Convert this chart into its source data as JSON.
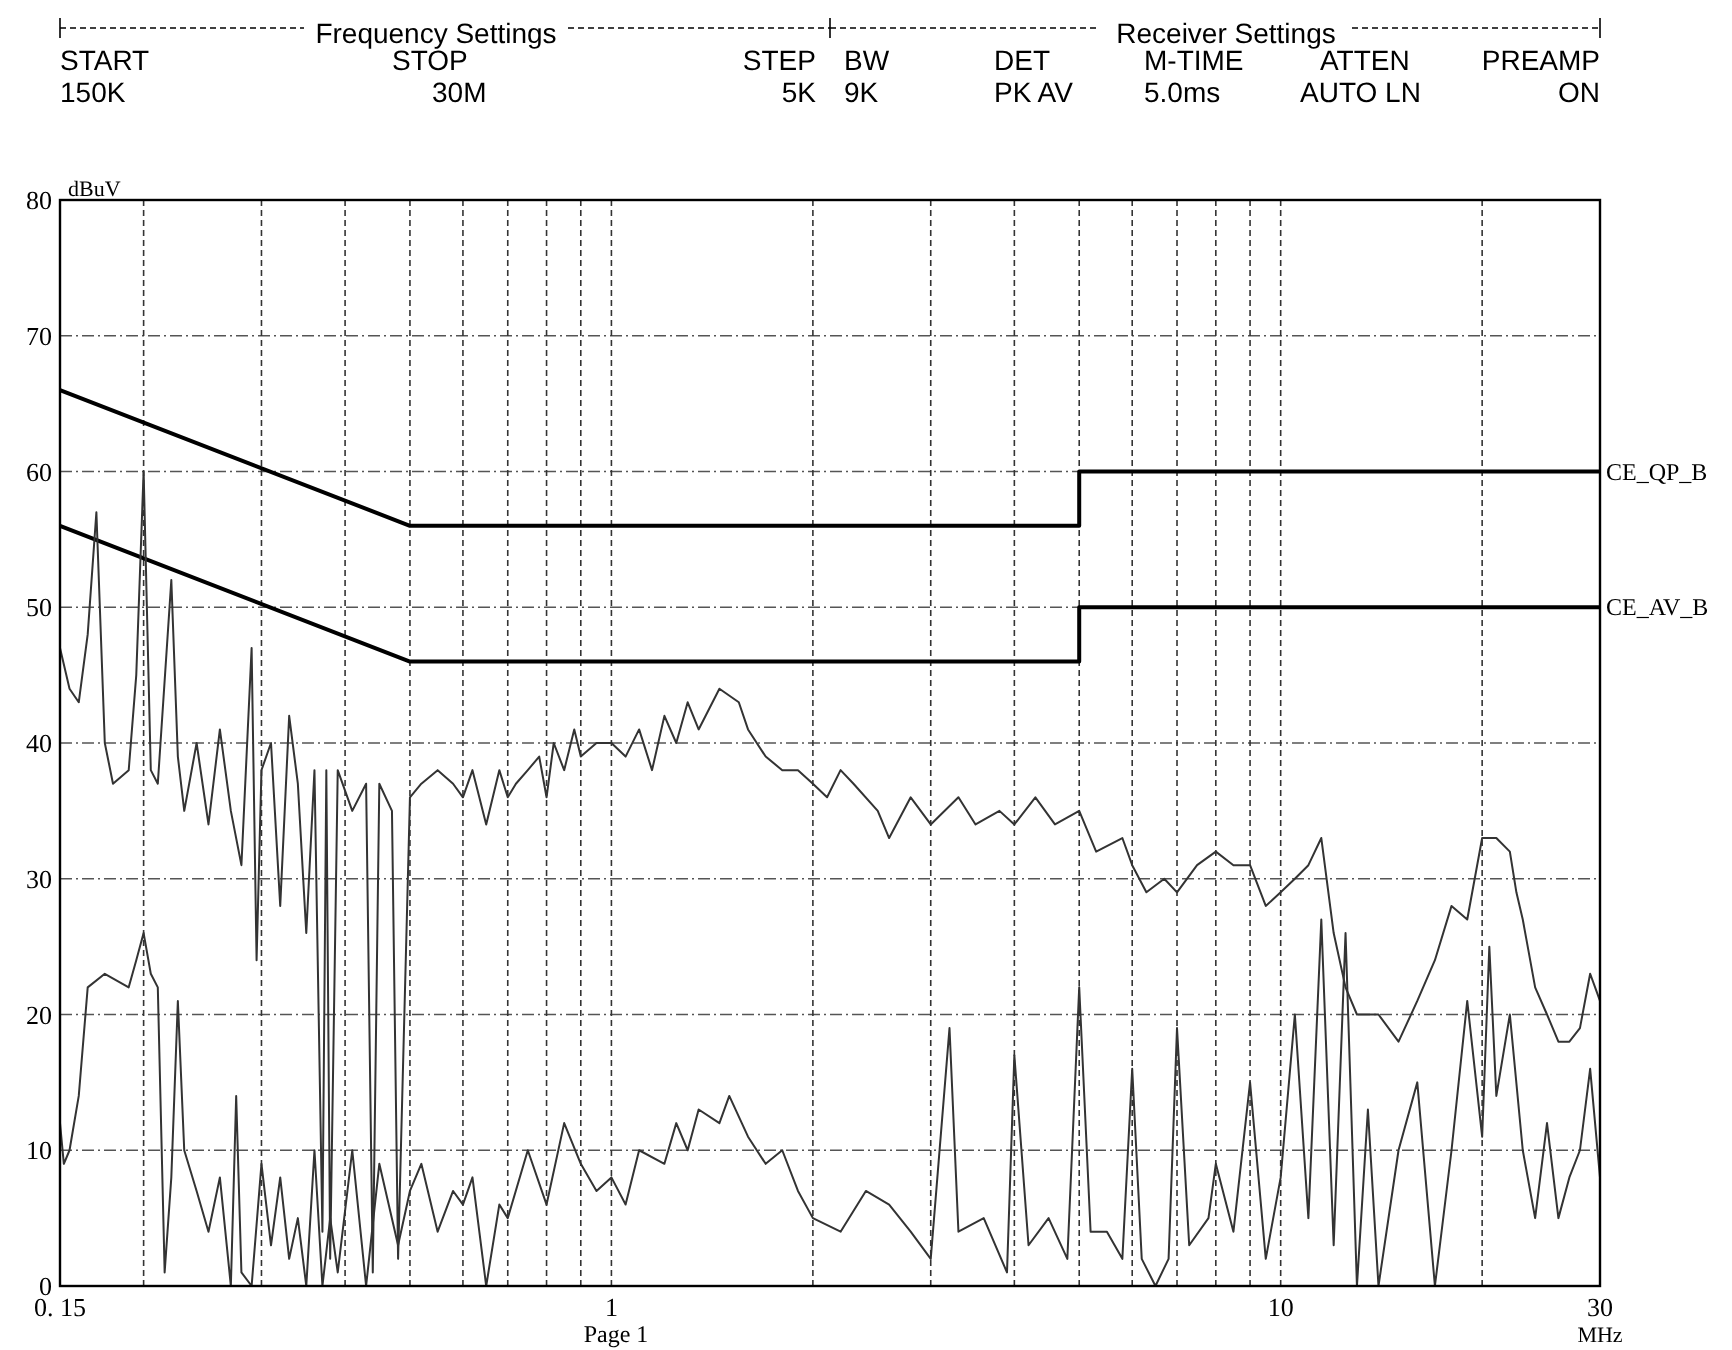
{
  "chart_data": {
    "type": "line",
    "xlabel": "MHz",
    "ylabel": "dBuV",
    "log": "x",
    "grid": true,
    "xlim": [
      0.15,
      30
    ],
    "ylim": [
      0,
      80
    ],
    "xticks": [
      {
        "value": 0.15,
        "label": "0. 15"
      },
      {
        "value": 0.2,
        "label": null
      },
      {
        "value": 0.3,
        "label": null
      },
      {
        "value": 0.4,
        "label": null
      },
      {
        "value": 0.5,
        "label": null
      },
      {
        "value": 0.6,
        "label": null
      },
      {
        "value": 0.7,
        "label": null
      },
      {
        "value": 0.8,
        "label": null
      },
      {
        "value": 0.9,
        "label": null
      },
      1,
      {
        "value": 2,
        "label": null
      },
      {
        "value": 3,
        "label": null
      },
      {
        "value": 4,
        "label": null
      },
      {
        "value": 5,
        "label": null
      },
      {
        "value": 6,
        "label": null
      },
      {
        "value": 7,
        "label": null
      },
      {
        "value": 8,
        "label": null
      },
      {
        "value": 9,
        "label": null
      },
      10,
      {
        "value": 20,
        "label": null
      },
      30
    ],
    "yticks": [
      0,
      10,
      20,
      30,
      40,
      50,
      60,
      70,
      80
    ],
    "annotations": [
      "Frequency Settings",
      "Receiver Settings",
      "START",
      "STOP",
      "STEP",
      "BW",
      "DET",
      "M-TIME",
      "ATTEN",
      "PREAMP",
      "150K",
      "30M",
      "5K",
      "9K",
      "PK AV",
      "5.0ms",
      "AUTO LN",
      "ON",
      "Page 1"
    ],
    "series": [
      {
        "name": "CE_QP_B",
        "color": "#000000",
        "x": [
          0.15,
          0.5,
          5,
          5,
          30
        ],
        "values": [
          66,
          56,
          56,
          60,
          60
        ]
      },
      {
        "name": "CE_AV_B",
        "color": "#000000",
        "x": [
          0.15,
          0.5,
          5,
          5,
          30
        ],
        "values": [
          56,
          46,
          46,
          50,
          50
        ]
      },
      {
        "color": "#333333",
        "x": [
          0.15,
          0.155,
          0.16,
          0.165,
          0.17,
          0.175,
          0.18,
          0.19,
          0.195,
          0.2,
          0.205,
          0.21,
          0.22,
          0.225,
          0.23,
          0.24,
          0.25,
          0.26,
          0.27,
          0.28,
          0.29,
          0.295,
          0.3,
          0.31,
          0.32,
          0.33,
          0.34,
          0.35,
          0.36,
          0.37,
          0.375,
          0.38,
          0.39,
          0.41,
          0.43,
          0.44,
          0.45,
          0.47,
          0.48,
          0.5,
          0.52,
          0.55,
          0.58,
          0.6,
          0.62,
          0.65,
          0.68,
          0.7,
          0.72,
          0.75,
          0.78,
          0.8,
          0.82,
          0.85,
          0.88,
          0.9,
          0.95,
          1,
          1.05,
          1.1,
          1.15,
          1.2,
          1.25,
          1.3,
          1.35,
          1.45,
          1.55,
          1.6,
          1.7,
          1.8,
          1.9,
          2,
          2.1,
          2.2,
          2.3,
          2.5,
          2.6,
          2.8,
          3,
          3.3,
          3.5,
          3.8,
          4,
          4.3,
          4.6,
          5,
          5.3,
          5.8,
          6,
          6.3,
          6.7,
          7,
          7.5,
          8,
          8.5,
          9,
          9.5,
          10,
          10.5,
          11,
          11.5,
          12,
          12.5,
          13,
          14,
          15,
          16,
          17,
          18,
          19,
          20,
          21,
          22,
          22.5,
          23,
          24,
          25,
          26,
          27,
          28,
          29,
          29.5,
          30
        ],
        "values": [
          47,
          44,
          43,
          48,
          57,
          40,
          37,
          38,
          45,
          60,
          38,
          37,
          52,
          39,
          35,
          40,
          34,
          41,
          35,
          31,
          47,
          24,
          38,
          40,
          28,
          42,
          37,
          26,
          38,
          4,
          38,
          2,
          38,
          35,
          37,
          1,
          37,
          35,
          2,
          36,
          37,
          38,
          37,
          36,
          38,
          34,
          38,
          36,
          37,
          38,
          39,
          36,
          40,
          38,
          41,
          39,
          40,
          40,
          39,
          41,
          38,
          42,
          40,
          43,
          41,
          44,
          43,
          41,
          39,
          38,
          38,
          37,
          36,
          38,
          37,
          35,
          33,
          36,
          34,
          36,
          34,
          35,
          34,
          36,
          34,
          35,
          32,
          33,
          31,
          29,
          30,
          29,
          31,
          32,
          31,
          31,
          28,
          29,
          30,
          31,
          33,
          26,
          22,
          20,
          20,
          18,
          21,
          24,
          28,
          27,
          33,
          33,
          32,
          29,
          27,
          22,
          20,
          18,
          18,
          19,
          23,
          22,
          21
        ]
      },
      {
        "color": "#333333",
        "x": [
          0.15,
          0.152,
          0.155,
          0.16,
          0.165,
          0.175,
          0.19,
          0.195,
          0.2,
          0.205,
          0.21,
          0.215,
          0.22,
          0.225,
          0.23,
          0.24,
          0.25,
          0.26,
          0.27,
          0.275,
          0.28,
          0.29,
          0.3,
          0.31,
          0.32,
          0.33,
          0.34,
          0.35,
          0.36,
          0.37,
          0.38,
          0.39,
          0.41,
          0.43,
          0.45,
          0.48,
          0.5,
          0.52,
          0.55,
          0.58,
          0.6,
          0.62,
          0.65,
          0.68,
          0.7,
          0.75,
          0.8,
          0.85,
          0.9,
          0.95,
          1,
          1.05,
          1.1,
          1.2,
          1.25,
          1.3,
          1.35,
          1.45,
          1.5,
          1.6,
          1.7,
          1.8,
          1.9,
          2,
          2.2,
          2.4,
          2.6,
          2.8,
          3,
          3.2,
          3.3,
          3.6,
          3.9,
          4,
          4.2,
          4.5,
          4.8,
          5,
          5.2,
          5.5,
          5.8,
          6,
          6.2,
          6.5,
          6.8,
          7,
          7.3,
          7.8,
          8,
          8.5,
          9,
          9.5,
          10,
          10.5,
          11,
          11.5,
          12,
          12.5,
          13,
          13.5,
          14,
          15,
          16,
          17,
          18,
          19,
          20,
          20.5,
          21,
          22,
          23,
          24,
          25,
          26,
          27,
          28,
          29,
          30
        ],
        "values": [
          12,
          9,
          10,
          14,
          22,
          23,
          22,
          24,
          26,
          23,
          22,
          1,
          8,
          21,
          10,
          7,
          4,
          8,
          0,
          14,
          1,
          0,
          9,
          3,
          8,
          2,
          5,
          0,
          10,
          0,
          5,
          1,
          10,
          0,
          9,
          3,
          7,
          9,
          4,
          7,
          6,
          8,
          0,
          6,
          5,
          10,
          6,
          12,
          9,
          7,
          8,
          6,
          10,
          9,
          12,
          10,
          13,
          12,
          14,
          11,
          9,
          10,
          7,
          5,
          4,
          7,
          6,
          4,
          2,
          19,
          4,
          5,
          1,
          17,
          3,
          5,
          2,
          22,
          4,
          4,
          2,
          16,
          2,
          0,
          2,
          19,
          3,
          5,
          9,
          4,
          15,
          2,
          8,
          20,
          5,
          27,
          3,
          26,
          0,
          13,
          0,
          10,
          15,
          0,
          10,
          21,
          11,
          25,
          14,
          20,
          10,
          5,
          12,
          5,
          8,
          10,
          16,
          8
        ]
      }
    ]
  }
}
